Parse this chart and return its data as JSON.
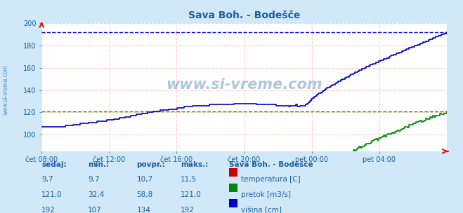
{
  "title": "Sava Boh. - Bodešče",
  "title_color": "#1a5fa0",
  "bg_color": "#d0e8f8",
  "plot_bg_color": "#ffffff",
  "grid_color": "#ffcccc",
  "x_labels": [
    "čet 08:00",
    "čet 12:00",
    "čet 16:00",
    "čet 20:00",
    "pet 00:00",
    "pet 04:00"
  ],
  "x_ticks_norm": [
    0.0,
    0.167,
    0.333,
    0.5,
    0.667,
    0.833
  ],
  "ylim_min": 85,
  "ylim_max": 200,
  "yticks": [
    100,
    120,
    140,
    160,
    180,
    200
  ],
  "temp_color": "#cc0000",
  "pretok_color": "#008800",
  "visina_color": "#0000cc",
  "watermark": "www.si-vreme.com",
  "watermark_color": "#1a5fa0",
  "sidebar_text": "www.si-vreme.com",
  "sidebar_color": "#4488aa",
  "legend_title": "Sava Boh. - Bodešče",
  "legend_title_color": "#1a5fa0",
  "table_headers": [
    "sedaj:",
    "min.:",
    "povpr.:",
    "maks.:"
  ],
  "table_temp": [
    "9,7",
    "9,7",
    "10,7",
    "11,5"
  ],
  "table_pretok": [
    "121,0",
    "32,4",
    "58,8",
    "121,0"
  ],
  "table_visina": [
    "192",
    "107",
    "134",
    "192"
  ],
  "temp_label": "temperatura [C]",
  "pretok_label": "pretok [m3/s]",
  "visina_label": "višina [cm]",
  "temp_max": 11.5,
  "pretok_max": 121.0,
  "visina_max": 192,
  "pretok_mean_dashed": 121.0,
  "visina_mean_dashed": 192
}
